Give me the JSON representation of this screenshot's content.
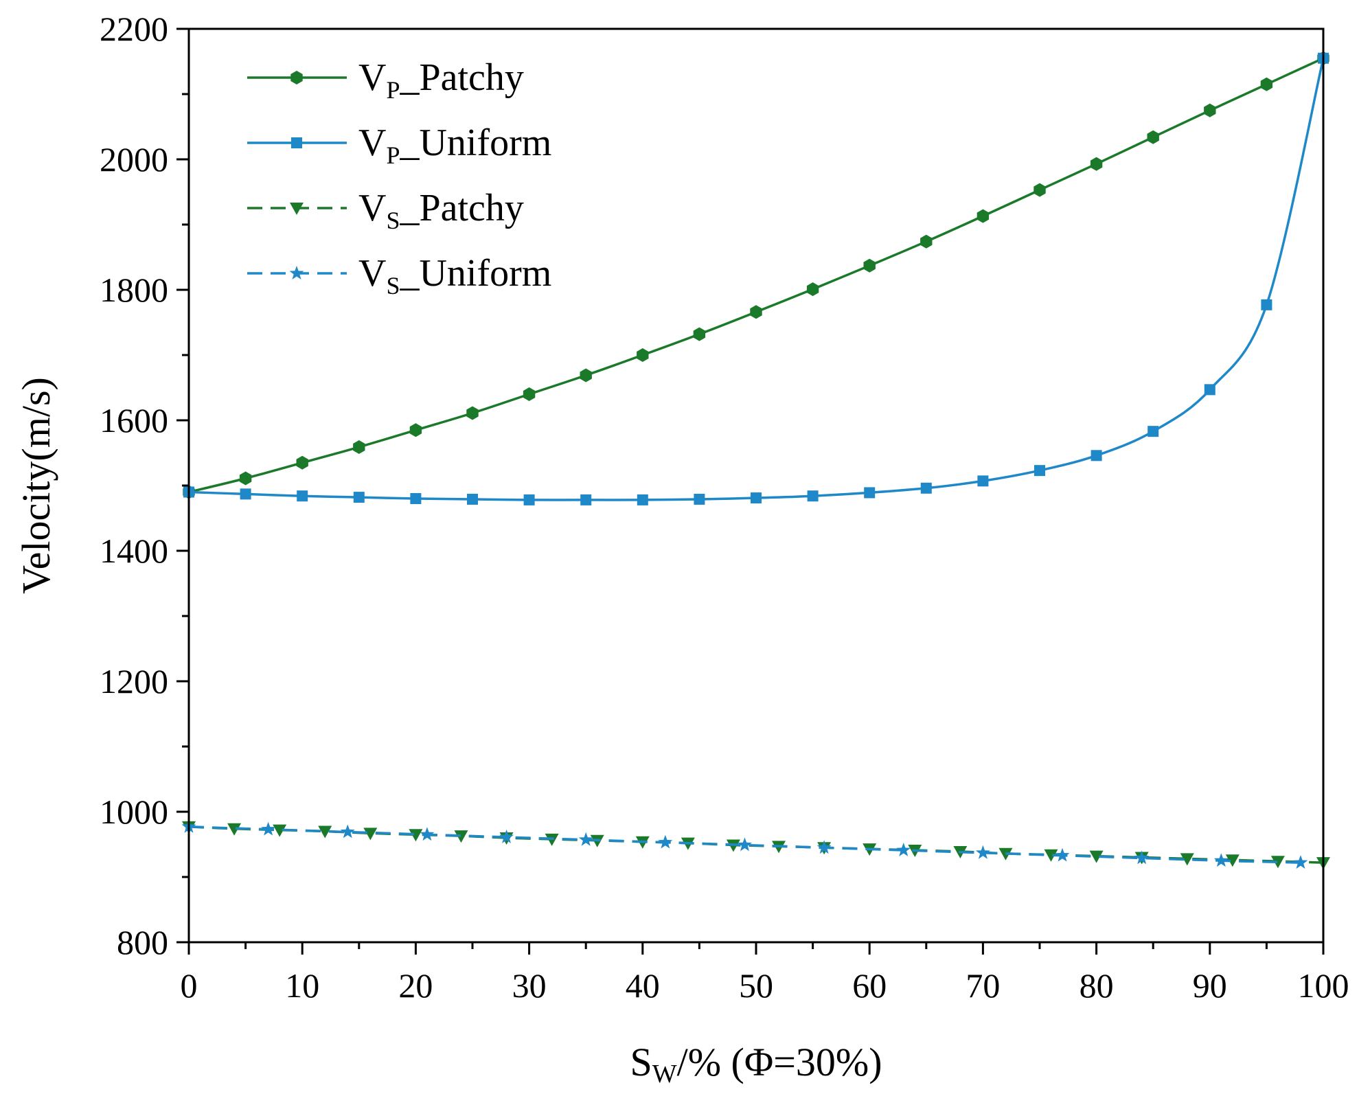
{
  "chart_data": {
    "type": "line",
    "title": "",
    "xlabel": {
      "main": "S",
      "sub": "W",
      "rest": "/% (Φ=30%)"
    },
    "ylabel": "Velocity(m/s)",
    "xlim": [
      0,
      100
    ],
    "ylim": [
      800,
      2200
    ],
    "xticks": [
      "0",
      "10",
      "20",
      "30",
      "40",
      "50",
      "60",
      "70",
      "80",
      "90",
      "100"
    ],
    "yticks": [
      "800",
      "1000",
      "1200",
      "1400",
      "1600",
      "1800",
      "2000",
      "2200"
    ],
    "grid": false,
    "legend_position": "top-left",
    "series": [
      {
        "name": "VP_Patchy",
        "legend": {
          "main": "V",
          "sub": "P",
          "rest": "_Patchy"
        },
        "color": "#1a7a2a",
        "dash": "solid",
        "marker": "hexagon",
        "x": [
          0,
          5,
          10,
          15,
          20,
          25,
          30,
          35,
          40,
          45,
          50,
          55,
          60,
          65,
          70,
          75,
          80,
          85,
          90,
          95,
          100
        ],
        "y": [
          1490,
          1511,
          1535,
          1559,
          1585,
          1611,
          1640,
          1669,
          1700,
          1732,
          1766,
          1801,
          1837,
          1874,
          1913,
          1953,
          1993,
          2034,
          2075,
          2115,
          2155
        ]
      },
      {
        "name": "VP_Uniform",
        "legend": {
          "main": "V",
          "sub": "P",
          "rest": "_Uniform"
        },
        "color": "#1e88c8",
        "dash": "solid",
        "marker": "square",
        "x": [
          0,
          5,
          10,
          15,
          20,
          25,
          30,
          35,
          40,
          45,
          50,
          55,
          60,
          65,
          70,
          75,
          80,
          85,
          90,
          95,
          100
        ],
        "y": [
          1490,
          1487,
          1484,
          1482,
          1480,
          1479,
          1478,
          1478,
          1478,
          1479,
          1481,
          1484,
          1489,
          1496,
          1507,
          1523,
          1546,
          1583,
          1647,
          1777,
          2155
        ]
      },
      {
        "name": "VS_Patchy",
        "legend": {
          "main": "V",
          "sub": "S",
          "rest": "_Patchy"
        },
        "color": "#1a7a2a",
        "dash": "dashed",
        "marker": "triangle-down",
        "x": [
          0,
          4,
          8,
          12,
          16,
          20,
          24,
          28,
          32,
          36,
          40,
          44,
          48,
          52,
          56,
          60,
          64,
          68,
          72,
          76,
          80,
          84,
          88,
          92,
          96,
          100
        ],
        "y": [
          977,
          974,
          972,
          970,
          967,
          965,
          963,
          960,
          958,
          956,
          954,
          952,
          949,
          947,
          945,
          943,
          941,
          939,
          936,
          934,
          932,
          930,
          928,
          926,
          924,
          922
        ]
      },
      {
        "name": "VS_Uniform",
        "legend": {
          "main": "V",
          "sub": "S",
          "rest": "_Uniform"
        },
        "color": "#1e88c8",
        "dash": "dashed",
        "marker": "star",
        "x": [
          0,
          7,
          14,
          21,
          28,
          35,
          42,
          49,
          56,
          63,
          70,
          77,
          84,
          91,
          98
        ],
        "y": [
          977,
          973,
          969,
          965,
          961,
          957,
          953,
          949,
          945,
          941,
          937,
          933,
          929,
          925,
          922
        ]
      }
    ]
  }
}
